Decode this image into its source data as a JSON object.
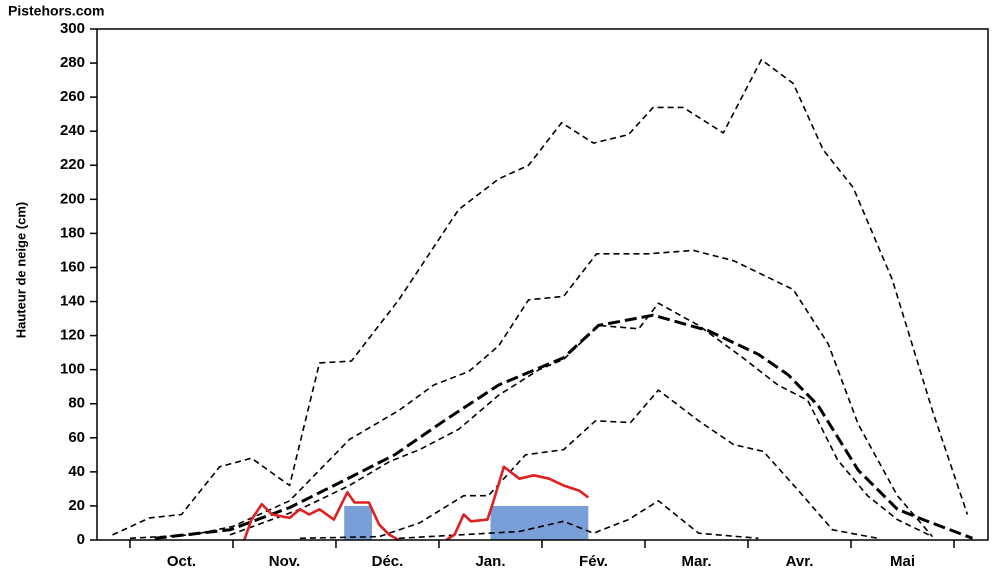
{
  "chart_data": {
    "type": "line",
    "watermark": "Pistehors.com",
    "y_label": "Hauteur de neige (cm)",
    "categories": [
      "Oct.",
      "Nov.",
      "Déc.",
      "Jan.",
      "Fév.",
      "Mar.",
      "Avr.",
      "Mai"
    ],
    "xlim": [
      -0.32,
      8.33
    ],
    "ylim": [
      0,
      300
    ],
    "yticks": [
      0,
      20,
      40,
      60,
      80,
      100,
      120,
      140,
      160,
      180,
      200,
      220,
      240,
      260,
      280,
      300
    ],
    "series": [
      {
        "color": "#000000",
        "dash": true,
        "width": 1.6,
        "x": [
          -0.17,
          0.19,
          0.5,
          0.87,
          1.18,
          1.55,
          1.84,
          2.15,
          2.61,
          3.19,
          3.58,
          3.87,
          4.19,
          4.5,
          4.84,
          5.08,
          5.37,
          5.76,
          6.13,
          6.44,
          6.73,
          7.02,
          7.4,
          7.79,
          8.13
        ],
        "values": [
          3,
          13,
          15,
          43,
          48,
          32,
          104,
          105,
          141,
          194,
          212,
          220,
          245,
          233,
          238,
          254,
          254,
          239,
          282,
          268,
          229,
          207,
          153,
          76,
          15
        ]
      },
      {
        "color": "#000000",
        "dash": true,
        "width": 1.6,
        "x": [
          0,
          0.6,
          1.0,
          1.55,
          2.13,
          2.61,
          2.95,
          3.29,
          3.58,
          3.87,
          4.21,
          4.53,
          5.03,
          5.47,
          5.86,
          6.44,
          6.78,
          7.07,
          7.45,
          7.79
        ],
        "values": [
          1,
          3,
          8,
          23,
          59,
          76,
          91,
          99,
          114,
          141,
          143,
          168,
          168,
          170,
          164,
          147,
          115,
          68,
          26,
          2
        ]
      },
      {
        "color": "#000000",
        "dash": true,
        "width": 3,
        "x": [
          0.24,
          0.97,
          1.55,
          2.08,
          2.57,
          3.05,
          3.58,
          4.21,
          4.55,
          5.08,
          5.61,
          6.1,
          6.39,
          6.68,
          7.07,
          7.45,
          7.7,
          8.18
        ],
        "values": [
          1,
          6,
          19,
          35,
          50,
          70,
          91,
          107,
          126,
          132,
          123,
          109,
          97,
          79,
          41,
          18,
          12,
          1
        ]
      },
      {
        "color": "#000000",
        "dash": true,
        "width": 1.6,
        "x": [
          0.97,
          1.65,
          2.13,
          2.52,
          2.81,
          3.19,
          3.58,
          3.97,
          4.21,
          4.55,
          4.94,
          5.13,
          5.52,
          5.95,
          6.29,
          6.58,
          6.87,
          7.16,
          7.45,
          7.79
        ],
        "values": [
          3,
          18,
          32,
          46,
          53,
          65,
          85,
          100,
          106,
          126,
          124,
          139,
          126,
          107,
          91,
          82,
          47,
          26,
          12,
          2
        ]
      },
      {
        "color": "#000000",
        "dash": true,
        "width": 1.6,
        "x": [
          1.65,
          2.42,
          2.81,
          3.24,
          3.48,
          3.84,
          4.21,
          4.52,
          4.86,
          5.13,
          5.52,
          5.86,
          6.15,
          6.49,
          6.82,
          7.26
        ],
        "values": [
          1,
          2,
          10,
          26,
          26,
          50,
          53,
          70,
          69,
          88,
          70,
          56,
          52,
          29,
          6,
          1
        ]
      },
      {
        "color": "#000000",
        "dash": true,
        "width": 1.6,
        "x": [
          2.61,
          3.78,
          4.21,
          4.5,
          4.84,
          5.13,
          5.52,
          6.1
        ],
        "values": [
          1,
          5,
          11,
          4,
          12,
          23,
          4,
          1
        ]
      },
      {
        "color": "#e02020",
        "dash": false,
        "width": 2.6,
        "x": [
          1.11,
          1.18,
          1.28,
          1.38,
          1.55,
          1.65,
          1.74,
          1.84,
          1.98,
          2.11,
          2.18,
          2.32,
          2.42,
          2.52,
          2.61,
          2.85,
          3.07,
          3.15,
          3.24,
          3.31,
          3.47,
          3.53,
          3.63,
          3.78,
          3.92,
          4.07,
          4.21,
          4.36,
          4.45
        ],
        "values": [
          0,
          12,
          21,
          15,
          13,
          18,
          15,
          18,
          12,
          28,
          22,
          22,
          9,
          3,
          0,
          null,
          0,
          3,
          15,
          11,
          12,
          23,
          43,
          36,
          38,
          36,
          32,
          29,
          25
        ]
      }
    ],
    "blocks": {
      "color": "#7a9fd8",
      "items": [
        {
          "x": [
            2.08,
            2.35
          ],
          "value": 20
        },
        {
          "x": [
            3.5,
            4.45
          ],
          "value": 20
        }
      ]
    }
  }
}
